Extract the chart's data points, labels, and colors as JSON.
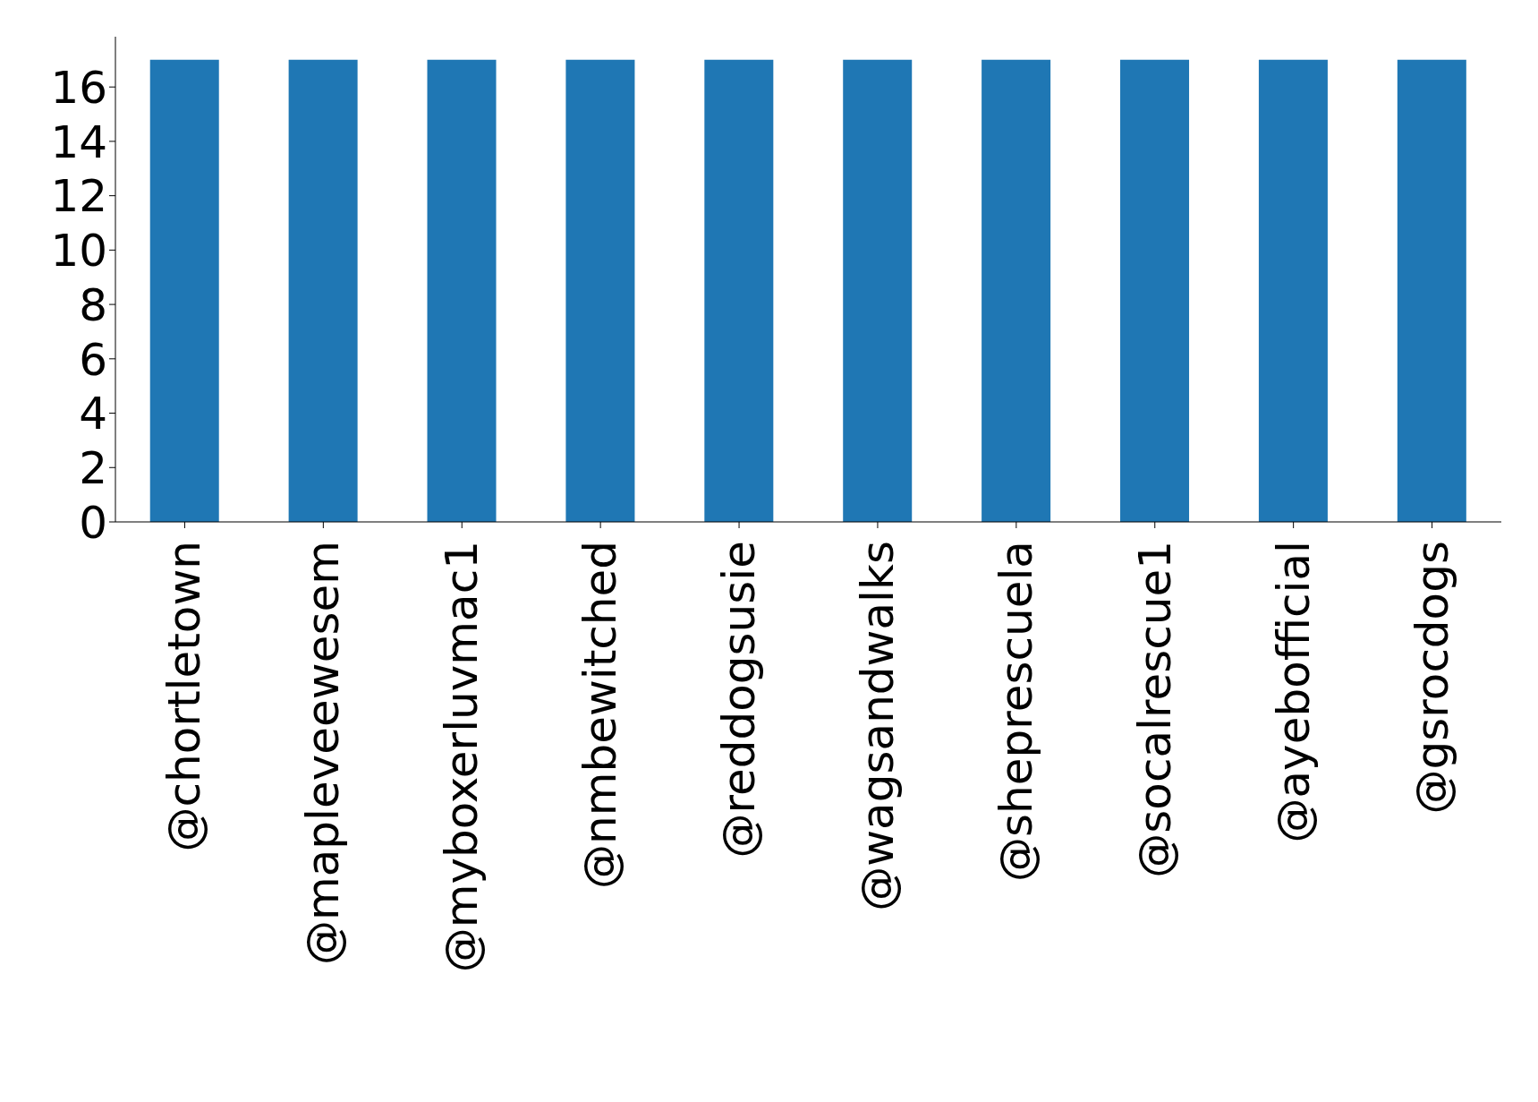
{
  "chart_data": {
    "type": "bar",
    "categories": [
      "@chortletown",
      "@mapleveewesem",
      "@myboxerluvmac1",
      "@nmbewitched",
      "@reddogsusie",
      "@wagsandwalks",
      "@sheprescuela",
      "@socalrescue1",
      "@ayebofficial",
      "@gsrocdogs"
    ],
    "values": [
      17,
      17,
      17,
      17,
      17,
      17,
      17,
      17,
      17,
      17
    ],
    "color": "#1f77b4",
    "ylim": [
      0,
      17.85
    ],
    "yticks": [
      0,
      2,
      4,
      6,
      8,
      10,
      12,
      14,
      16
    ],
    "grid": false,
    "legend": false
  }
}
